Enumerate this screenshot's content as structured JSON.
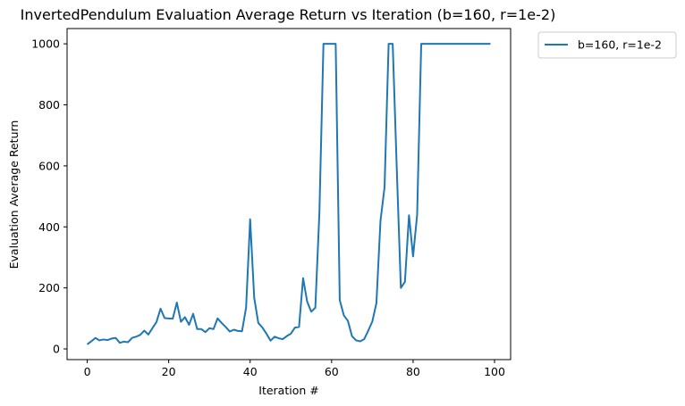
{
  "chart_data": {
    "type": "line",
    "title": "InvertedPendulum Evaluation Average Return vs Iteration (b=160, r=1e-2)",
    "xlabel": "Iteration #",
    "ylabel": "Evaluation Average Return",
    "xlim": [
      -4.95,
      103.95
    ],
    "ylim": [
      -35,
      1050
    ],
    "xticks": [
      0,
      20,
      40,
      60,
      80,
      100
    ],
    "yticks": [
      0,
      200,
      400,
      600,
      800,
      1000
    ],
    "grid": false,
    "legend_position": "outside-top-right",
    "series": [
      {
        "name": "b=160, r=1e-2",
        "color": "#1f77b4",
        "x": [
          0,
          1,
          2,
          3,
          4,
          5,
          6,
          7,
          8,
          9,
          10,
          11,
          12,
          13,
          14,
          15,
          16,
          17,
          18,
          19,
          20,
          21,
          22,
          23,
          24,
          25,
          26,
          27,
          28,
          29,
          30,
          31,
          32,
          33,
          34,
          35,
          36,
          37,
          38,
          39,
          40,
          41,
          42,
          43,
          44,
          45,
          46,
          47,
          48,
          49,
          50,
          51,
          52,
          53,
          54,
          55,
          56,
          57,
          58,
          59,
          60,
          61,
          62,
          63,
          64,
          65,
          66,
          67,
          68,
          69,
          70,
          71,
          72,
          73,
          74,
          75,
          76,
          77,
          78,
          79,
          80,
          81,
          82,
          83,
          84,
          85,
          86,
          87,
          88,
          89,
          90,
          91,
          92,
          93,
          94,
          95,
          96,
          97,
          98,
          99
        ],
        "y": [
          15,
          25,
          36,
          28,
          31,
          29,
          34,
          36,
          20,
          24,
          22,
          36,
          40,
          46,
          60,
          47,
          68,
          88,
          132,
          101,
          100,
          99,
          152,
          89,
          104,
          79,
          115,
          65,
          65,
          55,
          68,
          65,
          100,
          85,
          72,
          57,
          63,
          59,
          58,
          135,
          425,
          167,
          85,
          70,
          50,
          27,
          40,
          35,
          32,
          42,
          50,
          70,
          72,
          232,
          155,
          122,
          135,
          445,
          1000,
          1000,
          1000,
          1000,
          160,
          110,
          92,
          42,
          28,
          25,
          32,
          60,
          90,
          150,
          420,
          530,
          1000,
          1000,
          590,
          200,
          220,
          438,
          303,
          440,
          1000,
          1000,
          1000,
          1000,
          1000,
          1000,
          1000,
          1000,
          1000,
          1000,
          1000,
          1000,
          1000,
          1000,
          1000,
          1000,
          1000,
          1000
        ]
      }
    ]
  }
}
